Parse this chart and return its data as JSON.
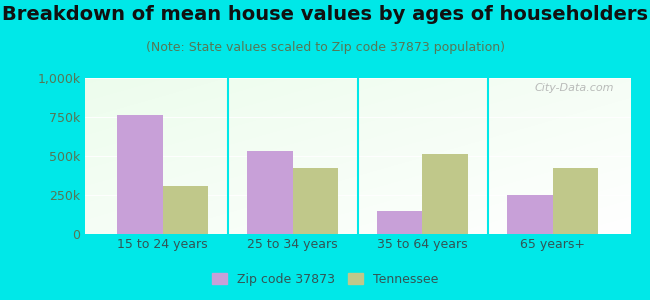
{
  "title": "Breakdown of mean house values by ages of householders",
  "subtitle": "(Note: State values scaled to Zip code 37873 population)",
  "categories": [
    "15 to 24 years",
    "25 to 34 years",
    "35 to 64 years",
    "65 years+"
  ],
  "zip_values": [
    760000,
    530000,
    150000,
    250000
  ],
  "state_values": [
    305000,
    420000,
    510000,
    420000
  ],
  "zip_color": "#c8a0d8",
  "state_color": "#c0c88a",
  "background_color": "#00e8e8",
  "ylim": [
    0,
    1000000
  ],
  "yticks": [
    0,
    250000,
    500000,
    750000,
    1000000
  ],
  "ytick_labels": [
    "0",
    "250k",
    "500k",
    "750k",
    "1,000k"
  ],
  "bar_width": 0.35,
  "legend_labels": [
    "Zip code 37873",
    "Tennessee"
  ],
  "watermark": "City-Data.com",
  "title_fontsize": 14,
  "subtitle_fontsize": 9,
  "tick_fontsize": 9,
  "legend_fontsize": 9,
  "ylabel_color": "#557755",
  "xlabel_color": "#335555",
  "title_color": "#111111",
  "subtitle_color": "#557755"
}
